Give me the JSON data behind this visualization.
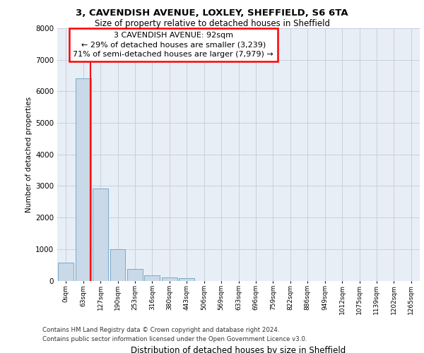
{
  "title_line1": "3, CAVENDISH AVENUE, LOXLEY, SHEFFIELD, S6 6TA",
  "title_line2": "Size of property relative to detached houses in Sheffield",
  "xlabel": "Distribution of detached houses by size in Sheffield",
  "ylabel": "Number of detached properties",
  "bar_labels": [
    "0sqm",
    "63sqm",
    "127sqm",
    "190sqm",
    "253sqm",
    "316sqm",
    "380sqm",
    "443sqm",
    "506sqm",
    "569sqm",
    "633sqm",
    "696sqm",
    "759sqm",
    "822sqm",
    "886sqm",
    "949sqm",
    "1012sqm",
    "1075sqm",
    "1139sqm",
    "1202sqm",
    "1265sqm"
  ],
  "bar_values": [
    560,
    6420,
    2920,
    1000,
    370,
    175,
    100,
    80,
    0,
    0,
    0,
    0,
    0,
    0,
    0,
    0,
    0,
    0,
    0,
    0,
    0
  ],
  "bar_color": "#c9d9e8",
  "bar_edge_color": "#7aaac8",
  "annotation_text": "3 CAVENDISH AVENUE: 92sqm\n← 29% of detached houses are smaller (3,239)\n71% of semi-detached houses are larger (7,979) →",
  "annotation_box_color": "white",
  "annotation_box_edge_color": "red",
  "vline_color": "red",
  "vline_x": 1.43,
  "ylim": [
    0,
    8000
  ],
  "yticks": [
    0,
    1000,
    2000,
    3000,
    4000,
    5000,
    6000,
    7000,
    8000
  ],
  "grid_color": "#c8d0dc",
  "bg_color": "#e8eef6",
  "footer_line1": "Contains HM Land Registry data © Crown copyright and database right 2024.",
  "footer_line2": "Contains public sector information licensed under the Open Government Licence v3.0."
}
